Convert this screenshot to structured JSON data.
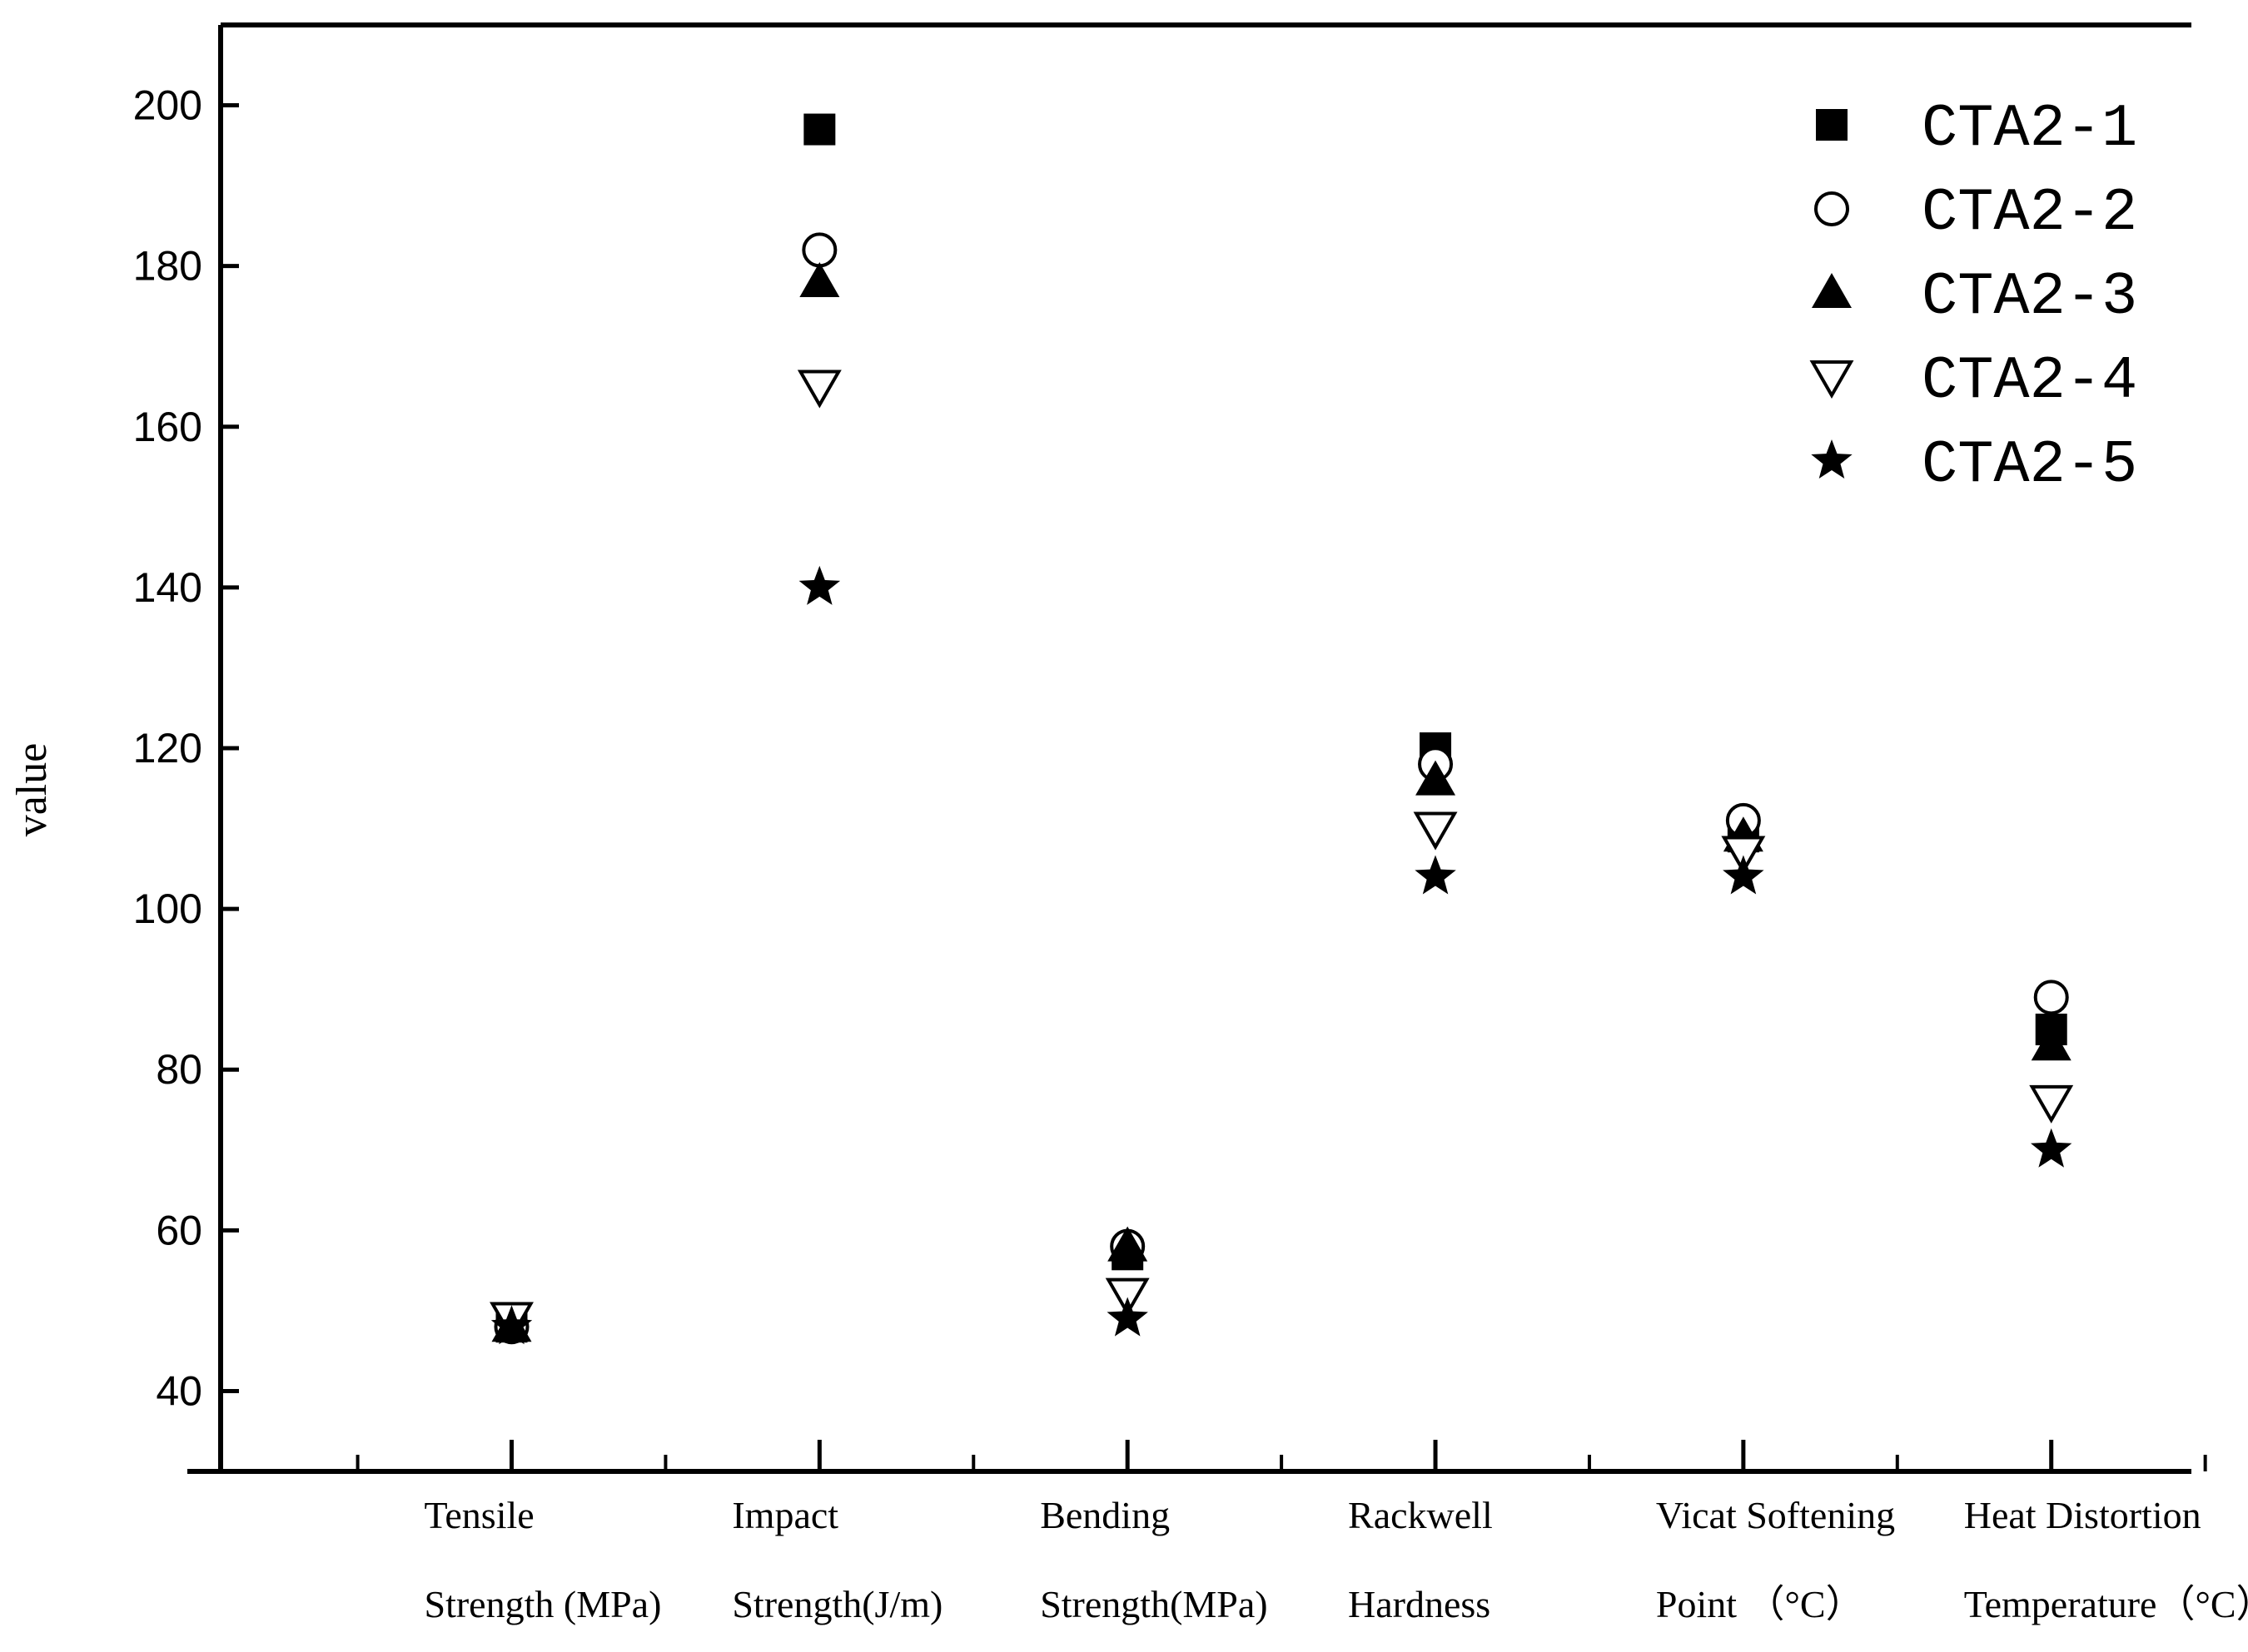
{
  "chart_data": {
    "type": "scatter",
    "title": "",
    "xlabel": "",
    "ylabel": "value",
    "ylim": [
      30,
      210
    ],
    "yticks": [
      40,
      60,
      80,
      100,
      120,
      140,
      160,
      180,
      200
    ],
    "ytick_labels": [
      "40",
      "60",
      "80",
      "100",
      "120",
      "140",
      "160",
      "180",
      "200"
    ],
    "grid": false,
    "legend_position": "top-right",
    "categories": [
      [
        "Tensile",
        "Strength (MPa)"
      ],
      [
        "Impact",
        "Strength(J/m)"
      ],
      [
        "Bending",
        "Strength(MPa)"
      ],
      [
        "Rackwell",
        "Hardness"
      ],
      [
        "Vicat Softening",
        "Point （°C）"
      ],
      [
        "Heat Distortion",
        "Temperature（°C）"
      ]
    ],
    "series": [
      {
        "name": "CTA2-1",
        "marker": "square-filled",
        "values": [
          48,
          197,
          57,
          120,
          109,
          85
        ]
      },
      {
        "name": "CTA2-2",
        "marker": "circle-open",
        "values": [
          48,
          182,
          58,
          118,
          111,
          89
        ]
      },
      {
        "name": "CTA2-3",
        "marker": "triangle-filled",
        "values": [
          48,
          178,
          58,
          116,
          109,
          83
        ]
      },
      {
        "name": "CTA2-4",
        "marker": "triangle-down-open",
        "values": [
          49,
          165,
          52,
          110,
          107,
          76
        ]
      },
      {
        "name": "CTA2-5",
        "marker": "star-filled",
        "values": [
          48,
          140,
          49,
          104,
          104,
          70
        ]
      }
    ]
  }
}
